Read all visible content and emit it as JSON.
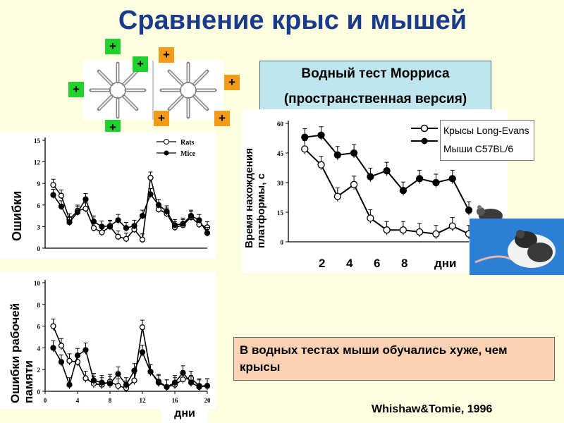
{
  "title": "Сравнение крыс и мышей",
  "morris": {
    "line1": "Водный тест Морриса",
    "line2": "(пространственная  версия)"
  },
  "note": "В водных тестах мыши  обучались хуже, чем крысы",
  "citation": "Whishaw&Tomie, 1996",
  "maze_marks": {
    "symbol": "+",
    "green": "#22d12e",
    "orange": "#f29a1a"
  },
  "left_labels": {
    "errors": "Ошибки",
    "wm_errors_line1": "Ошибки рабочей",
    "wm_errors_line2": "памяти",
    "days": "дни"
  },
  "right_labels": {
    "ylabel_line1": "Время нахождения",
    "ylabel_line2": "платформы, с",
    "xlabel": "дни",
    "xticks": [
      "2",
      "4",
      "6",
      "8"
    ]
  },
  "legend_main": {
    "rats": "Крысы Long-Evans",
    "mice": "Мыши C57BL/6"
  },
  "legend_small": {
    "rats": "Rats",
    "mice": "Mice"
  },
  "chart_data": [
    {
      "type": "line",
      "ylabel": "Ошибки",
      "xlim": [
        0,
        20
      ],
      "ylim": [
        0,
        15
      ],
      "yticks": [
        0,
        3,
        6,
        9,
        12,
        15
      ],
      "x": [
        1,
        2,
        3,
        4,
        5,
        6,
        7,
        8,
        9,
        10,
        11,
        12,
        13,
        14,
        15,
        16,
        17,
        18,
        19,
        20
      ],
      "series": [
        {
          "name": "Rats",
          "marker": "open",
          "values": [
            8.8,
            7.3,
            4.0,
            5.2,
            5.5,
            2.8,
            2.2,
            3.0,
            1.6,
            1.3,
            2.6,
            1.2,
            9.8,
            5.4,
            4.8,
            2.9,
            3.2,
            4.3,
            3.3,
            2.9
          ]
        },
        {
          "name": "Mice",
          "marker": "filled",
          "values": [
            7.4,
            5.8,
            3.6,
            5.0,
            6.8,
            3.7,
            3.0,
            3.1,
            3.9,
            2.8,
            3.1,
            4.5,
            7.5,
            6.0,
            5.1,
            3.2,
            3.4,
            4.5,
            3.9,
            2.1
          ]
        }
      ]
    },
    {
      "type": "line",
      "ylabel": "Ошибки рабочей памяти",
      "xlabel": "дни",
      "xlim": [
        0,
        20
      ],
      "ylim": [
        0,
        10
      ],
      "yticks": [
        0,
        2,
        4,
        6,
        8,
        10
      ],
      "xticks": [
        0,
        4,
        8,
        12,
        16,
        20
      ],
      "x": [
        1,
        2,
        3,
        4,
        5,
        6,
        7,
        8,
        9,
        10,
        11,
        12,
        13,
        14,
        15,
        16,
        17,
        18,
        19,
        20
      ],
      "series": [
        {
          "name": "Rats",
          "marker": "open",
          "values": [
            6.0,
            4.2,
            2.8,
            2.7,
            1.2,
            0.7,
            0.6,
            0.9,
            0.5,
            0.3,
            1.0,
            5.9,
            1.8,
            0.9,
            0.4,
            0.6,
            1.1,
            1.2,
            0.5,
            0.5
          ]
        },
        {
          "name": "Mice",
          "marker": "filled",
          "values": [
            4.0,
            2.7,
            0.6,
            3.3,
            3.8,
            1.0,
            0.8,
            0.7,
            1.6,
            0.6,
            1.9,
            3.6,
            1.8,
            0.8,
            0.4,
            0.8,
            1.7,
            0.8,
            0.4,
            0.5
          ]
        }
      ]
    },
    {
      "type": "line",
      "ylabel": "Время нахождения платформы, с",
      "xlabel": "дни",
      "xlim": [
        0,
        11
      ],
      "ylim": [
        0,
        60
      ],
      "yticks": [
        0,
        15,
        30,
        45,
        60
      ],
      "x": [
        1,
        2,
        3,
        4,
        5,
        6,
        7,
        8,
        9,
        10,
        11
      ],
      "series": [
        {
          "name": "Крысы Long-Evans",
          "marker": "open",
          "values": [
            47,
            39,
            23,
            29,
            12,
            6,
            6,
            5,
            4,
            8,
            4
          ]
        },
        {
          "name": "Мыши C57BL/6",
          "marker": "filled",
          "values": [
            53,
            54,
            44,
            45,
            33,
            36,
            26,
            32,
            30,
            32,
            16
          ]
        }
      ]
    }
  ]
}
